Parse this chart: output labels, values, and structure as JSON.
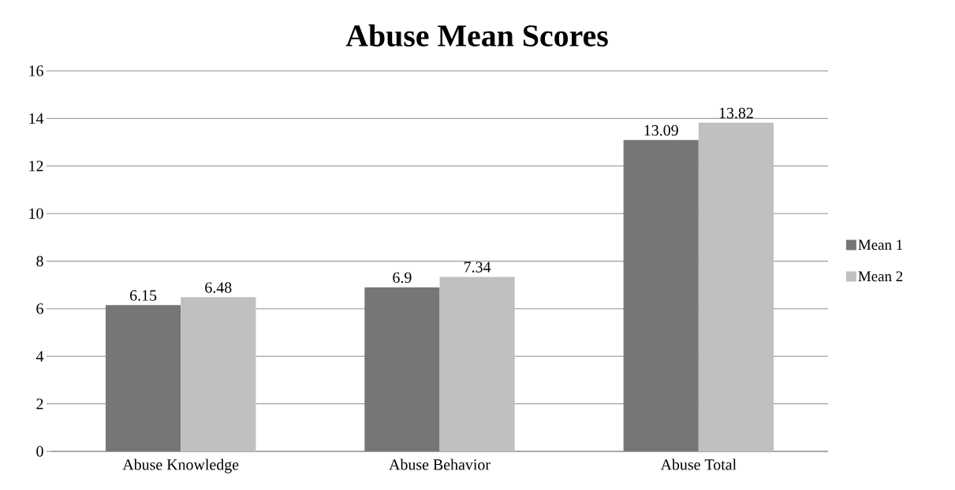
{
  "chart_data": {
    "type": "bar",
    "title": "Abuse Mean Scores",
    "categories": [
      "Abuse Knowledge",
      "Abuse Behavior",
      "Abuse Total"
    ],
    "series": [
      {
        "name": "Mean 1",
        "color": "#767676",
        "values": [
          6.15,
          6.9,
          13.09
        ]
      },
      {
        "name": "Mean 2",
        "color": "#c0c0c0",
        "values": [
          6.48,
          7.34,
          13.82
        ]
      }
    ],
    "ylim": [
      0,
      16
    ],
    "yticks": [
      0,
      2,
      4,
      6,
      8,
      10,
      12,
      14,
      16
    ],
    "grid": "y",
    "legend": "right",
    "data_labels": true
  }
}
